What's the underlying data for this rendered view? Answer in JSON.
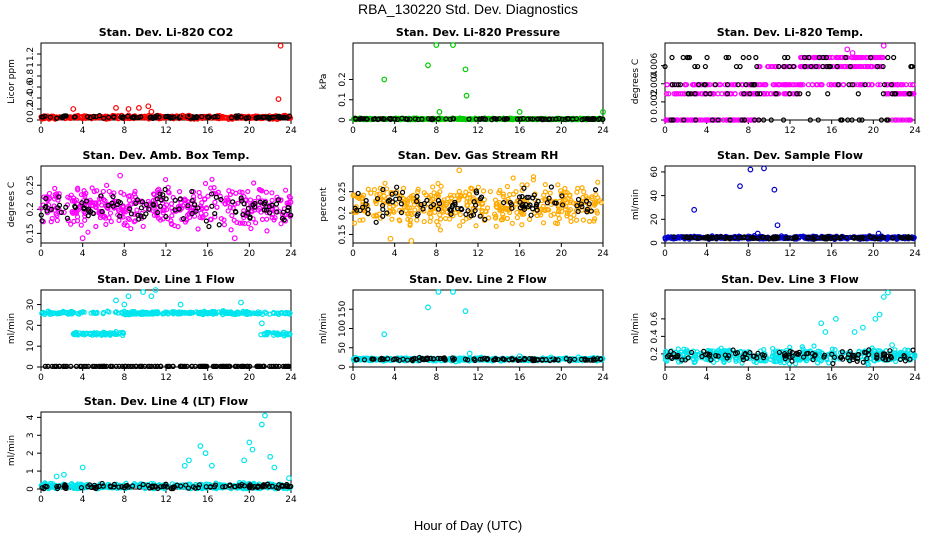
{
  "figure": {
    "title": "RBA_130220  Std. Dev. Diagnostics",
    "xlabel": "Hour of Day (UTC)"
  },
  "chart_data": [
    {
      "type": "scatter",
      "title": "Stan. Dev. Li-820 CO2",
      "ylabel": "Licor ppm",
      "xlim": [
        0,
        24
      ],
      "ylim": [
        0,
        1.4
      ],
      "yticks": [
        0,
        0.2,
        0.4,
        0.6,
        0.8,
        1.0,
        1.2
      ],
      "xticks": [
        0,
        4,
        8,
        12,
        16,
        20,
        24
      ],
      "color": "#ff0000",
      "base": 0.05,
      "spread": 0.03,
      "outliers": [
        [
          3.1,
          0.2
        ],
        [
          7.2,
          0.22
        ],
        [
          8.4,
          0.2
        ],
        [
          9.4,
          0.22
        ],
        [
          10.3,
          0.25
        ],
        [
          10.6,
          0.15
        ],
        [
          13.6,
          0.08
        ],
        [
          14.2,
          0.08
        ],
        [
          22.8,
          0.38
        ],
        [
          23.0,
          1.35
        ]
      ]
    },
    {
      "type": "scatter",
      "title": "Stan. Dev. Li-820 Pressure",
      "ylabel": "kPa",
      "xlim": [
        0,
        24
      ],
      "ylim": [
        0,
        0.38
      ],
      "yticks": [
        0,
        0.1,
        0.2
      ],
      "xticks": [
        0,
        4,
        8,
        12,
        16,
        20,
        24
      ],
      "color": "#00cc00",
      "base": 0.005,
      "spread": 0.004,
      "outliers": [
        [
          3.0,
          0.2
        ],
        [
          7.2,
          0.27
        ],
        [
          8.0,
          0.37
        ],
        [
          9.6,
          0.37
        ],
        [
          10.8,
          0.25
        ],
        [
          10.9,
          0.12
        ],
        [
          8.3,
          0.04
        ],
        [
          16.0,
          0.04
        ],
        [
          24.0,
          0.04
        ]
      ]
    },
    {
      "type": "scatter",
      "title": "Stan. Dev. Li-820 Temp.",
      "ylabel": "degrees C",
      "xlim": [
        0,
        24
      ],
      "ylim": [
        0,
        0.0085
      ],
      "yticks": [
        0.0,
        0.002,
        0.004,
        0.006
      ],
      "xticks": [
        0,
        4,
        8,
        12,
        16,
        20,
        24
      ],
      "color": "#ff00ff",
      "levels": [
        0,
        0.0029,
        0.0039,
        0.0059,
        0.0069
      ],
      "outliers": [
        [
          17.5,
          0.0078
        ],
        [
          18.0,
          0.0074
        ],
        [
          21.0,
          0.0082
        ]
      ]
    },
    {
      "type": "scatter",
      "title": "Stan. Dev. Amb. Box Temp.",
      "ylabel": "degrees C",
      "xlim": [
        0,
        24
      ],
      "ylim": [
        0.13,
        0.29
      ],
      "yticks": [
        0.15,
        0.2,
        0.25
      ],
      "xticks": [
        0,
        4,
        8,
        12,
        16,
        20,
        24
      ],
      "color": "#ff00ff",
      "base": 0.205,
      "spread": 0.04,
      "outliers": [
        [
          7.6,
          0.27
        ],
        [
          4.0,
          0.14
        ],
        [
          18.6,
          0.14
        ]
      ]
    },
    {
      "type": "scatter",
      "title": "Stan. Dev. Gas Stream RH",
      "ylabel": "percent",
      "xlim": [
        0,
        24
      ],
      "ylim": [
        0.13,
        0.31
      ],
      "yticks": [
        0.15,
        0.2,
        0.25
      ],
      "xticks": [
        0,
        4,
        8,
        12,
        16,
        20,
        24
      ],
      "color": "#ffaa00",
      "base": 0.22,
      "spread": 0.045,
      "outliers": [
        [
          5.6,
          0.135
        ],
        [
          10.2,
          0.3
        ],
        [
          3.6,
          0.14
        ]
      ]
    },
    {
      "type": "scatter",
      "title": "Stan. Dev. Sample Flow",
      "ylabel": "ml/min",
      "xlim": [
        0,
        24
      ],
      "ylim": [
        0,
        65
      ],
      "yticks": [
        0,
        20,
        40,
        60
      ],
      "xticks": [
        0,
        4,
        8,
        12,
        16,
        20,
        24
      ],
      "color": "#0000cc",
      "base": 4.5,
      "spread": 1.2,
      "outliers": [
        [
          2.8,
          28
        ],
        [
          7.2,
          48
        ],
        [
          8.2,
          62
        ],
        [
          9.5,
          63
        ],
        [
          10.5,
          45
        ],
        [
          10.8,
          15
        ],
        [
          8.9,
          8
        ],
        [
          20.5,
          8
        ]
      ]
    },
    {
      "type": "scatter",
      "title": "Stan. Dev. Line 1 Flow",
      "ylabel": "ml/min",
      "xlim": [
        0,
        24
      ],
      "ylim": [
        0,
        37
      ],
      "yticks": [
        0,
        10,
        20,
        30
      ],
      "xticks": [
        0,
        4,
        8,
        12,
        16,
        20,
        24
      ],
      "color": "#00e5ee",
      "band1": 26,
      "band2": 16,
      "outliers": [
        [
          7.2,
          32
        ],
        [
          8.0,
          30
        ],
        [
          8.4,
          34
        ],
        [
          9.8,
          36
        ],
        [
          10.6,
          34
        ],
        [
          11.0,
          37
        ],
        [
          19.2,
          31
        ],
        [
          21.2,
          21
        ],
        [
          13.4,
          30
        ]
      ]
    },
    {
      "type": "scatter",
      "title": "Stan. Dev. Line 2 Flow",
      "ylabel": "ml/min",
      "xlim": [
        0,
        24
      ],
      "ylim": [
        0,
        200
      ],
      "yticks": [
        0,
        50,
        100,
        150
      ],
      "xticks": [
        0,
        4,
        8,
        12,
        16,
        20,
        24
      ],
      "color": "#00e5ee",
      "base": 20,
      "spread": 4,
      "outliers": [
        [
          3.0,
          85
        ],
        [
          7.2,
          155
        ],
        [
          8.2,
          195
        ],
        [
          9.6,
          195
        ],
        [
          10.8,
          145
        ],
        [
          11.2,
          35
        ],
        [
          16.0,
          28
        ],
        [
          19.0,
          25
        ]
      ]
    },
    {
      "type": "scatter",
      "title": "Stan. Dev. Line 3 Flow",
      "ylabel": "ml/min",
      "xlim": [
        0,
        24
      ],
      "ylim": [
        0.05,
        0.93
      ],
      "yticks": [
        0.2,
        0.4,
        0.6
      ],
      "xticks": [
        0,
        4,
        8,
        12,
        16,
        20,
        24
      ],
      "color": "#00e5ee",
      "base": 0.18,
      "spread": 0.08,
      "outliers": [
        [
          15.0,
          0.55
        ],
        [
          15.4,
          0.45
        ],
        [
          16.4,
          0.6
        ],
        [
          18.2,
          0.45
        ],
        [
          19.0,
          0.5
        ],
        [
          20.2,
          0.6
        ],
        [
          20.6,
          0.65
        ],
        [
          21.0,
          0.85
        ],
        [
          21.4,
          0.9
        ],
        [
          21.8,
          0.3
        ]
      ]
    },
    {
      "type": "scatter",
      "title": "Stan. Dev. Line 4 (LT) Flow",
      "ylabel": "ml/min",
      "xlim": [
        0,
        24
      ],
      "ylim": [
        0,
        4.3
      ],
      "yticks": [
        0,
        1,
        2,
        3,
        4
      ],
      "xticks": [
        0,
        4,
        8,
        12,
        16,
        20,
        24
      ],
      "color": "#00e5ee",
      "base": 0.15,
      "spread": 0.15,
      "outliers": [
        [
          1.5,
          0.7
        ],
        [
          2.2,
          0.8
        ],
        [
          4.0,
          1.2
        ],
        [
          13.8,
          1.3
        ],
        [
          14.2,
          1.6
        ],
        [
          15.3,
          2.4
        ],
        [
          15.8,
          2.0
        ],
        [
          16.4,
          1.3
        ],
        [
          19.5,
          1.6
        ],
        [
          20.0,
          2.6
        ],
        [
          20.3,
          2.2
        ],
        [
          21.2,
          3.6
        ],
        [
          21.5,
          4.1
        ],
        [
          22.0,
          1.8
        ],
        [
          22.4,
          1.2
        ],
        [
          23.8,
          0.6
        ]
      ]
    }
  ]
}
